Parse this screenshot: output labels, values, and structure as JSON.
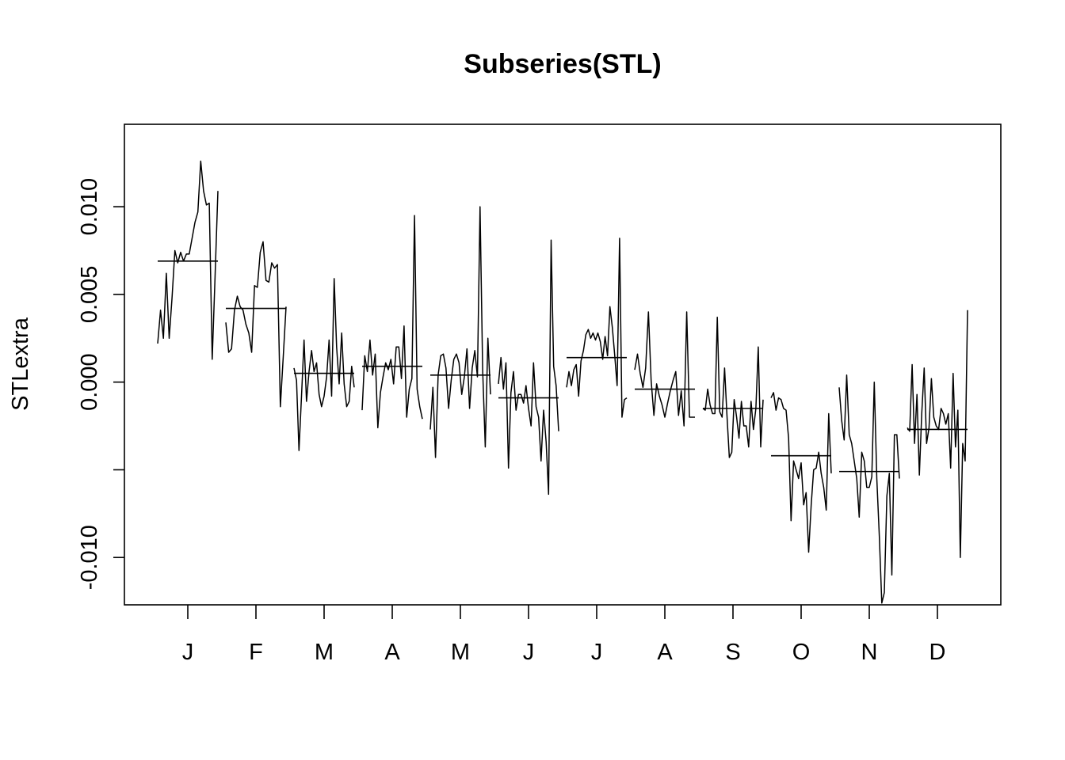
{
  "chart_data": {
    "type": "line",
    "title": "Subseries(STL)",
    "xlabel": "",
    "ylabel": "STLextra",
    "ylim": [
      -0.0127,
      0.0147
    ],
    "yticks": [
      -0.01,
      -0.005,
      0.0,
      0.005,
      0.01
    ],
    "ytick_labels": [
      "-0.010",
      "",
      "0.000",
      "0.005",
      "0.010"
    ],
    "categories": [
      "J",
      "F",
      "M",
      "A",
      "M",
      "J",
      "J",
      "A",
      "S",
      "O",
      "N",
      "D"
    ],
    "grid": false,
    "legend": "none",
    "subseries": [
      {
        "month": "J",
        "mean": 0.0069,
        "values": [
          0.0022,
          0.0041,
          0.0025,
          0.0062,
          0.0025,
          0.0048,
          0.0075,
          0.0068,
          0.0074,
          0.0069,
          0.0073,
          0.0073,
          0.0082,
          0.0091,
          0.0097,
          0.0126,
          0.0109,
          0.0101,
          0.0102,
          0.0013,
          0.006,
          0.0109
        ]
      },
      {
        "month": "F",
        "mean": 0.0042,
        "values": [
          0.0034,
          0.0017,
          0.0019,
          0.0041,
          0.0049,
          0.0043,
          0.0041,
          0.0033,
          0.0028,
          0.0017,
          0.0055,
          0.0054,
          0.0074,
          0.008,
          0.0058,
          0.0057,
          0.0068,
          0.0065,
          0.0067,
          -0.0014,
          0.0014,
          0.0043
        ]
      },
      {
        "month": "M",
        "mean": 0.0005,
        "values": [
          0.0008,
          0.0001,
          -0.0039,
          -0.0008,
          0.0024,
          -0.0011,
          0.0006,
          0.0018,
          0.0006,
          0.0011,
          -0.0007,
          -0.0014,
          -0.0008,
          0.0003,
          0.0024,
          -0.0008,
          0.0059,
          0.002,
          -0.0001,
          0.0028,
          -0.0001,
          -0.0014,
          -0.0011,
          0.0009,
          -0.0003
        ]
      },
      {
        "month": "A",
        "mean": 0.0009,
        "values": [
          -0.0016,
          0.0015,
          0.0006,
          0.0024,
          0.0004,
          0.0016,
          -0.0026,
          -0.0006,
          0.0003,
          0.0011,
          0.0007,
          0.0013,
          -0.0001,
          0.002,
          0.002,
          0.0002,
          0.0032,
          -0.002,
          -0.0004,
          0.0002,
          0.0095,
          -0.0004,
          -0.0014,
          -0.0021
        ]
      },
      {
        "month": "M",
        "mean": 0.0004,
        "values": [
          -0.0027,
          -0.0003,
          -0.0043,
          0.0004,
          0.0015,
          0.0016,
          0.0008,
          -0.0015,
          0.0001,
          0.0013,
          0.0016,
          0.0011,
          -0.0007,
          0.0003,
          0.0019,
          -0.0015,
          0.0008,
          0.0018,
          0.0003,
          0.01,
          0.0007,
          -0.0037,
          0.0025,
          -0.0007
        ]
      },
      {
        "month": "J",
        "mean": -0.0009,
        "values": [
          -0.0001,
          0.0014,
          -0.0004,
          0.0011,
          -0.0049,
          -0.0006,
          0.0006,
          -0.0016,
          -0.0007,
          -0.0007,
          -0.0012,
          -0.0002,
          -0.0015,
          -0.0025,
          0.0011,
          -0.0014,
          -0.002,
          -0.0045,
          -0.0016,
          -0.0034,
          -0.0064,
          0.0081,
          0.0009,
          -0.0002,
          -0.0028
        ]
      },
      {
        "month": "J",
        "mean": 0.0014,
        "values": [
          -0.0003,
          0.0006,
          -0.0002,
          0.0007,
          0.001,
          -0.0008,
          0.0012,
          0.0018,
          0.0027,
          0.003,
          0.0025,
          0.0028,
          0.0024,
          0.0028,
          0.0023,
          0.0013,
          0.0026,
          0.0015,
          0.0043,
          0.0031,
          0.0015,
          -0.0002,
          0.0082,
          -0.002,
          -0.001,
          -0.0009
        ]
      },
      {
        "month": "A",
        "mean": -0.0004,
        "values": [
          0.0007,
          0.0016,
          0.0005,
          -0.0003,
          0.0008,
          0.004,
          0.0001,
          -0.0019,
          -0.0001,
          -0.0008,
          -0.0013,
          -0.002,
          -0.0012,
          -0.0005,
          0.0001,
          0.0006,
          -0.0019,
          -0.0005,
          -0.0025,
          0.004,
          -0.002,
          -0.002,
          -0.002
        ]
      },
      {
        "month": "S",
        "mean": -0.0015,
        "values": [
          -0.0015,
          -0.0016,
          -0.0004,
          -0.0013,
          -0.0018,
          -0.0018,
          0.0037,
          -0.0017,
          -0.002,
          0.0008,
          -0.0019,
          -0.0043,
          -0.004,
          -0.001,
          -0.002,
          -0.0032,
          -0.0011,
          -0.0025,
          -0.0025,
          -0.0037,
          -0.0011,
          -0.0027,
          -0.0015,
          0.002,
          -0.0037,
          -0.001
        ]
      },
      {
        "month": "O",
        "mean": -0.0042,
        "values": [
          -0.0009,
          -0.0006,
          -0.0016,
          -0.0009,
          -0.001,
          -0.0015,
          -0.0016,
          -0.0032,
          -0.0079,
          -0.0045,
          -0.005,
          -0.0055,
          -0.0046,
          -0.007,
          -0.0063,
          -0.0097,
          -0.007,
          -0.005,
          -0.0049,
          -0.004,
          -0.0052,
          -0.006,
          -0.0073,
          -0.0018,
          -0.0052
        ]
      },
      {
        "month": "N",
        "mean": -0.0051,
        "values": [
          -0.0003,
          -0.0022,
          -0.0033,
          0.0004,
          -0.003,
          -0.0035,
          -0.0045,
          -0.0055,
          -0.0077,
          -0.004,
          -0.0045,
          -0.006,
          -0.006,
          -0.0054,
          0.0,
          -0.0055,
          -0.0088,
          -0.0126,
          -0.012,
          -0.0065,
          -0.0052,
          -0.011,
          -0.003,
          -0.003,
          -0.0055
        ]
      },
      {
        "month": "D",
        "mean": -0.0027,
        "values": [
          -0.0026,
          -0.0028,
          0.001,
          -0.0035,
          -0.0007,
          -0.0053,
          -0.0018,
          0.0008,
          -0.0035,
          -0.0026,
          0.0002,
          -0.002,
          -0.0025,
          -0.0027,
          -0.0015,
          -0.0018,
          -0.0024,
          -0.0018,
          -0.0049,
          0.0005,
          -0.0037,
          -0.0016,
          -0.01,
          -0.0035,
          -0.0045,
          0.0041
        ]
      }
    ]
  }
}
